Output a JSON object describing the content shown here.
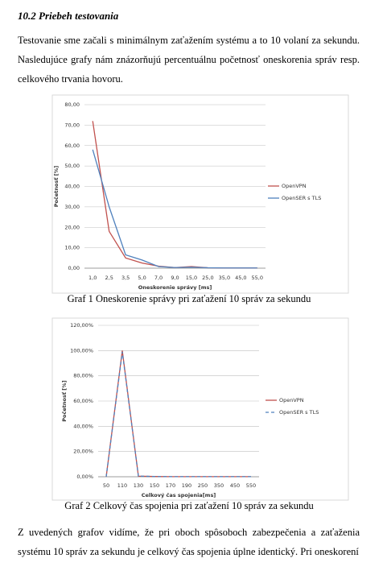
{
  "heading": "10.2 Priebeh testovania",
  "paragraphs": [
    "Testovanie sme začali s minimálnym zaťažením systému a to 10 volaní za sekundu. Nasledujúce grafy nám znázorňujú percentuálnu početnosť oneskorenia správ resp. celkového trvania hovoru.",
    "Z uvedených grafov vidíme, že pri oboch spôsoboch zabezpečenia a zaťaženia systému 10 správ za sekundu je celkový čas spojenia úplne identický. Pri oneskorení"
  ],
  "chart_data": [
    {
      "type": "line",
      "caption": "Graf 1 Oneskorenie správy pri zaťažení 10 správ za sekundu",
      "x_label": "Oneskorenie správy [ms]",
      "y_label": "Početnosť  [%]",
      "categories": [
        "1,0",
        "2,5",
        "3,5",
        "5,0",
        "7,0",
        "9,0",
        "15,0",
        "25,0",
        "35,0",
        "45,0",
        "55,0"
      ],
      "series": [
        {
          "name": "OpenVPN",
          "color": "#c0504d",
          "style": "solid",
          "values": [
            72,
            18,
            5,
            2.5,
            1,
            0.3,
            0.8,
            0.2,
            0.1,
            0.1,
            0.1
          ]
        },
        {
          "name": "OpenSER s TLS",
          "color": "#4f81bd",
          "style": "solid",
          "values": [
            58,
            30,
            6.5,
            4,
            0.8,
            0.3,
            0.5,
            0.2,
            0.1,
            0.1,
            0.1
          ]
        }
      ],
      "ylim": [
        0,
        80
      ],
      "yticks": [
        {
          "value": 0,
          "label": "0,00"
        },
        {
          "value": 10,
          "label": "10,00"
        },
        {
          "value": 20,
          "label": "20,00"
        },
        {
          "value": 30,
          "label": "30,00"
        },
        {
          "value": 40,
          "label": "40,00"
        },
        {
          "value": 50,
          "label": "50,00"
        },
        {
          "value": 60,
          "label": "60,00"
        },
        {
          "value": 70,
          "label": "70,00"
        },
        {
          "value": 80,
          "label": "80,00"
        }
      ],
      "grid": true
    },
    {
      "type": "line",
      "caption": "Graf 2 Celkový čas spojenia pri zaťažení 10 správ za sekundu",
      "x_label": "Celkový čas spojenia[ms]",
      "y_label": "Početnosť [%]",
      "categories": [
        "50",
        "110",
        "130",
        "150",
        "170",
        "190",
        "250",
        "350",
        "450",
        "550"
      ],
      "series": [
        {
          "name": "OpenVPN",
          "color": "#c0504d",
          "style": "solid",
          "values": [
            0,
            100,
            0.5,
            0.2,
            0.1,
            0.1,
            0.1,
            0.1,
            0.1,
            0.1
          ]
        },
        {
          "name": "OpenSER s TLS",
          "color": "#4f81bd",
          "style": "dashed",
          "values": [
            0,
            99,
            0.5,
            0.2,
            0.1,
            0.1,
            0.1,
            0.1,
            0.1,
            0.1
          ]
        }
      ],
      "ylim": [
        0,
        120
      ],
      "yticks": [
        {
          "value": 0,
          "label": "0,00%"
        },
        {
          "value": 20,
          "label": "20,00%"
        },
        {
          "value": 40,
          "label": "40,00%"
        },
        {
          "value": 60,
          "label": "60,00%"
        },
        {
          "value": 80,
          "label": "80,00%"
        },
        {
          "value": 100,
          "label": "100,00%"
        },
        {
          "value": 120,
          "label": "120,00%"
        }
      ],
      "grid": true
    }
  ]
}
